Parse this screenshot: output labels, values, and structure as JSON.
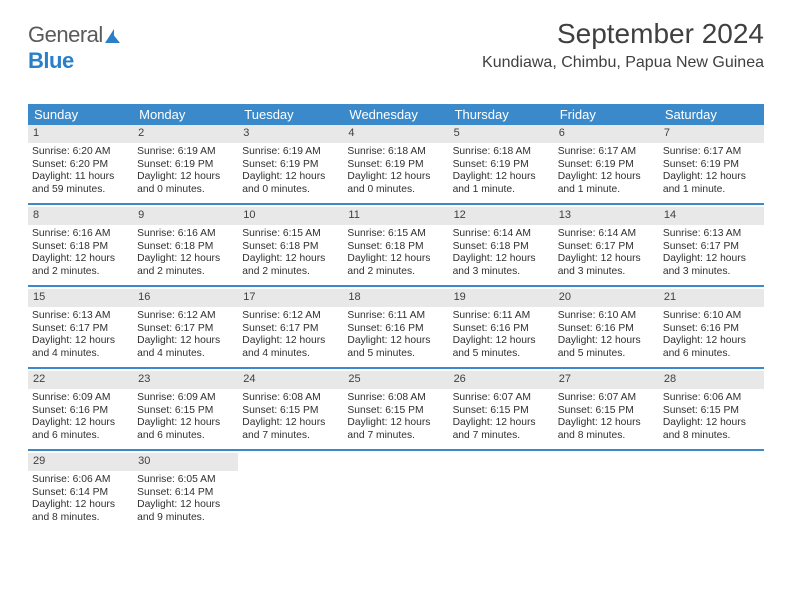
{
  "logo": {
    "text1": "General",
    "text2": "Blue"
  },
  "title": "September 2024",
  "subtitle": "Kundiawa, Chimbu, Papua New Guinea",
  "colors": {
    "header_bg": "#3a8acb",
    "header_text": "#ffffff",
    "daynum_bg": "#e8e8e8",
    "rule": "#3a8acb",
    "text": "#303030"
  },
  "weekday_headers": [
    "Sunday",
    "Monday",
    "Tuesday",
    "Wednesday",
    "Thursday",
    "Friday",
    "Saturday"
  ],
  "columns": 7,
  "fontsize": {
    "title": 28,
    "subtitle": 16,
    "weekday": 13,
    "daynum": 11,
    "body": 10.3
  },
  "days": [
    {
      "n": "1",
      "sr": "6:20 AM",
      "ss": "6:20 PM",
      "dl": "11 hours and 59 minutes."
    },
    {
      "n": "2",
      "sr": "6:19 AM",
      "ss": "6:19 PM",
      "dl": "12 hours and 0 minutes."
    },
    {
      "n": "3",
      "sr": "6:19 AM",
      "ss": "6:19 PM",
      "dl": "12 hours and 0 minutes."
    },
    {
      "n": "4",
      "sr": "6:18 AM",
      "ss": "6:19 PM",
      "dl": "12 hours and 0 minutes."
    },
    {
      "n": "5",
      "sr": "6:18 AM",
      "ss": "6:19 PM",
      "dl": "12 hours and 1 minute."
    },
    {
      "n": "6",
      "sr": "6:17 AM",
      "ss": "6:19 PM",
      "dl": "12 hours and 1 minute."
    },
    {
      "n": "7",
      "sr": "6:17 AM",
      "ss": "6:19 PM",
      "dl": "12 hours and 1 minute."
    },
    {
      "n": "8",
      "sr": "6:16 AM",
      "ss": "6:18 PM",
      "dl": "12 hours and 2 minutes."
    },
    {
      "n": "9",
      "sr": "6:16 AM",
      "ss": "6:18 PM",
      "dl": "12 hours and 2 minutes."
    },
    {
      "n": "10",
      "sr": "6:15 AM",
      "ss": "6:18 PM",
      "dl": "12 hours and 2 minutes."
    },
    {
      "n": "11",
      "sr": "6:15 AM",
      "ss": "6:18 PM",
      "dl": "12 hours and 2 minutes."
    },
    {
      "n": "12",
      "sr": "6:14 AM",
      "ss": "6:18 PM",
      "dl": "12 hours and 3 minutes."
    },
    {
      "n": "13",
      "sr": "6:14 AM",
      "ss": "6:17 PM",
      "dl": "12 hours and 3 minutes."
    },
    {
      "n": "14",
      "sr": "6:13 AM",
      "ss": "6:17 PM",
      "dl": "12 hours and 3 minutes."
    },
    {
      "n": "15",
      "sr": "6:13 AM",
      "ss": "6:17 PM",
      "dl": "12 hours and 4 minutes."
    },
    {
      "n": "16",
      "sr": "6:12 AM",
      "ss": "6:17 PM",
      "dl": "12 hours and 4 minutes."
    },
    {
      "n": "17",
      "sr": "6:12 AM",
      "ss": "6:17 PM",
      "dl": "12 hours and 4 minutes."
    },
    {
      "n": "18",
      "sr": "6:11 AM",
      "ss": "6:16 PM",
      "dl": "12 hours and 5 minutes."
    },
    {
      "n": "19",
      "sr": "6:11 AM",
      "ss": "6:16 PM",
      "dl": "12 hours and 5 minutes."
    },
    {
      "n": "20",
      "sr": "6:10 AM",
      "ss": "6:16 PM",
      "dl": "12 hours and 5 minutes."
    },
    {
      "n": "21",
      "sr": "6:10 AM",
      "ss": "6:16 PM",
      "dl": "12 hours and 6 minutes."
    },
    {
      "n": "22",
      "sr": "6:09 AM",
      "ss": "6:16 PM",
      "dl": "12 hours and 6 minutes."
    },
    {
      "n": "23",
      "sr": "6:09 AM",
      "ss": "6:15 PM",
      "dl": "12 hours and 6 minutes."
    },
    {
      "n": "24",
      "sr": "6:08 AM",
      "ss": "6:15 PM",
      "dl": "12 hours and 7 minutes."
    },
    {
      "n": "25",
      "sr": "6:08 AM",
      "ss": "6:15 PM",
      "dl": "12 hours and 7 minutes."
    },
    {
      "n": "26",
      "sr": "6:07 AM",
      "ss": "6:15 PM",
      "dl": "12 hours and 7 minutes."
    },
    {
      "n": "27",
      "sr": "6:07 AM",
      "ss": "6:15 PM",
      "dl": "12 hours and 8 minutes."
    },
    {
      "n": "28",
      "sr": "6:06 AM",
      "ss": "6:15 PM",
      "dl": "12 hours and 8 minutes."
    },
    {
      "n": "29",
      "sr": "6:06 AM",
      "ss": "6:14 PM",
      "dl": "12 hours and 8 minutes."
    },
    {
      "n": "30",
      "sr": "6:05 AM",
      "ss": "6:14 PM",
      "dl": "12 hours and 9 minutes."
    }
  ],
  "labels": {
    "sunrise": "Sunrise:",
    "sunset": "Sunset:",
    "daylight": "Daylight:"
  }
}
